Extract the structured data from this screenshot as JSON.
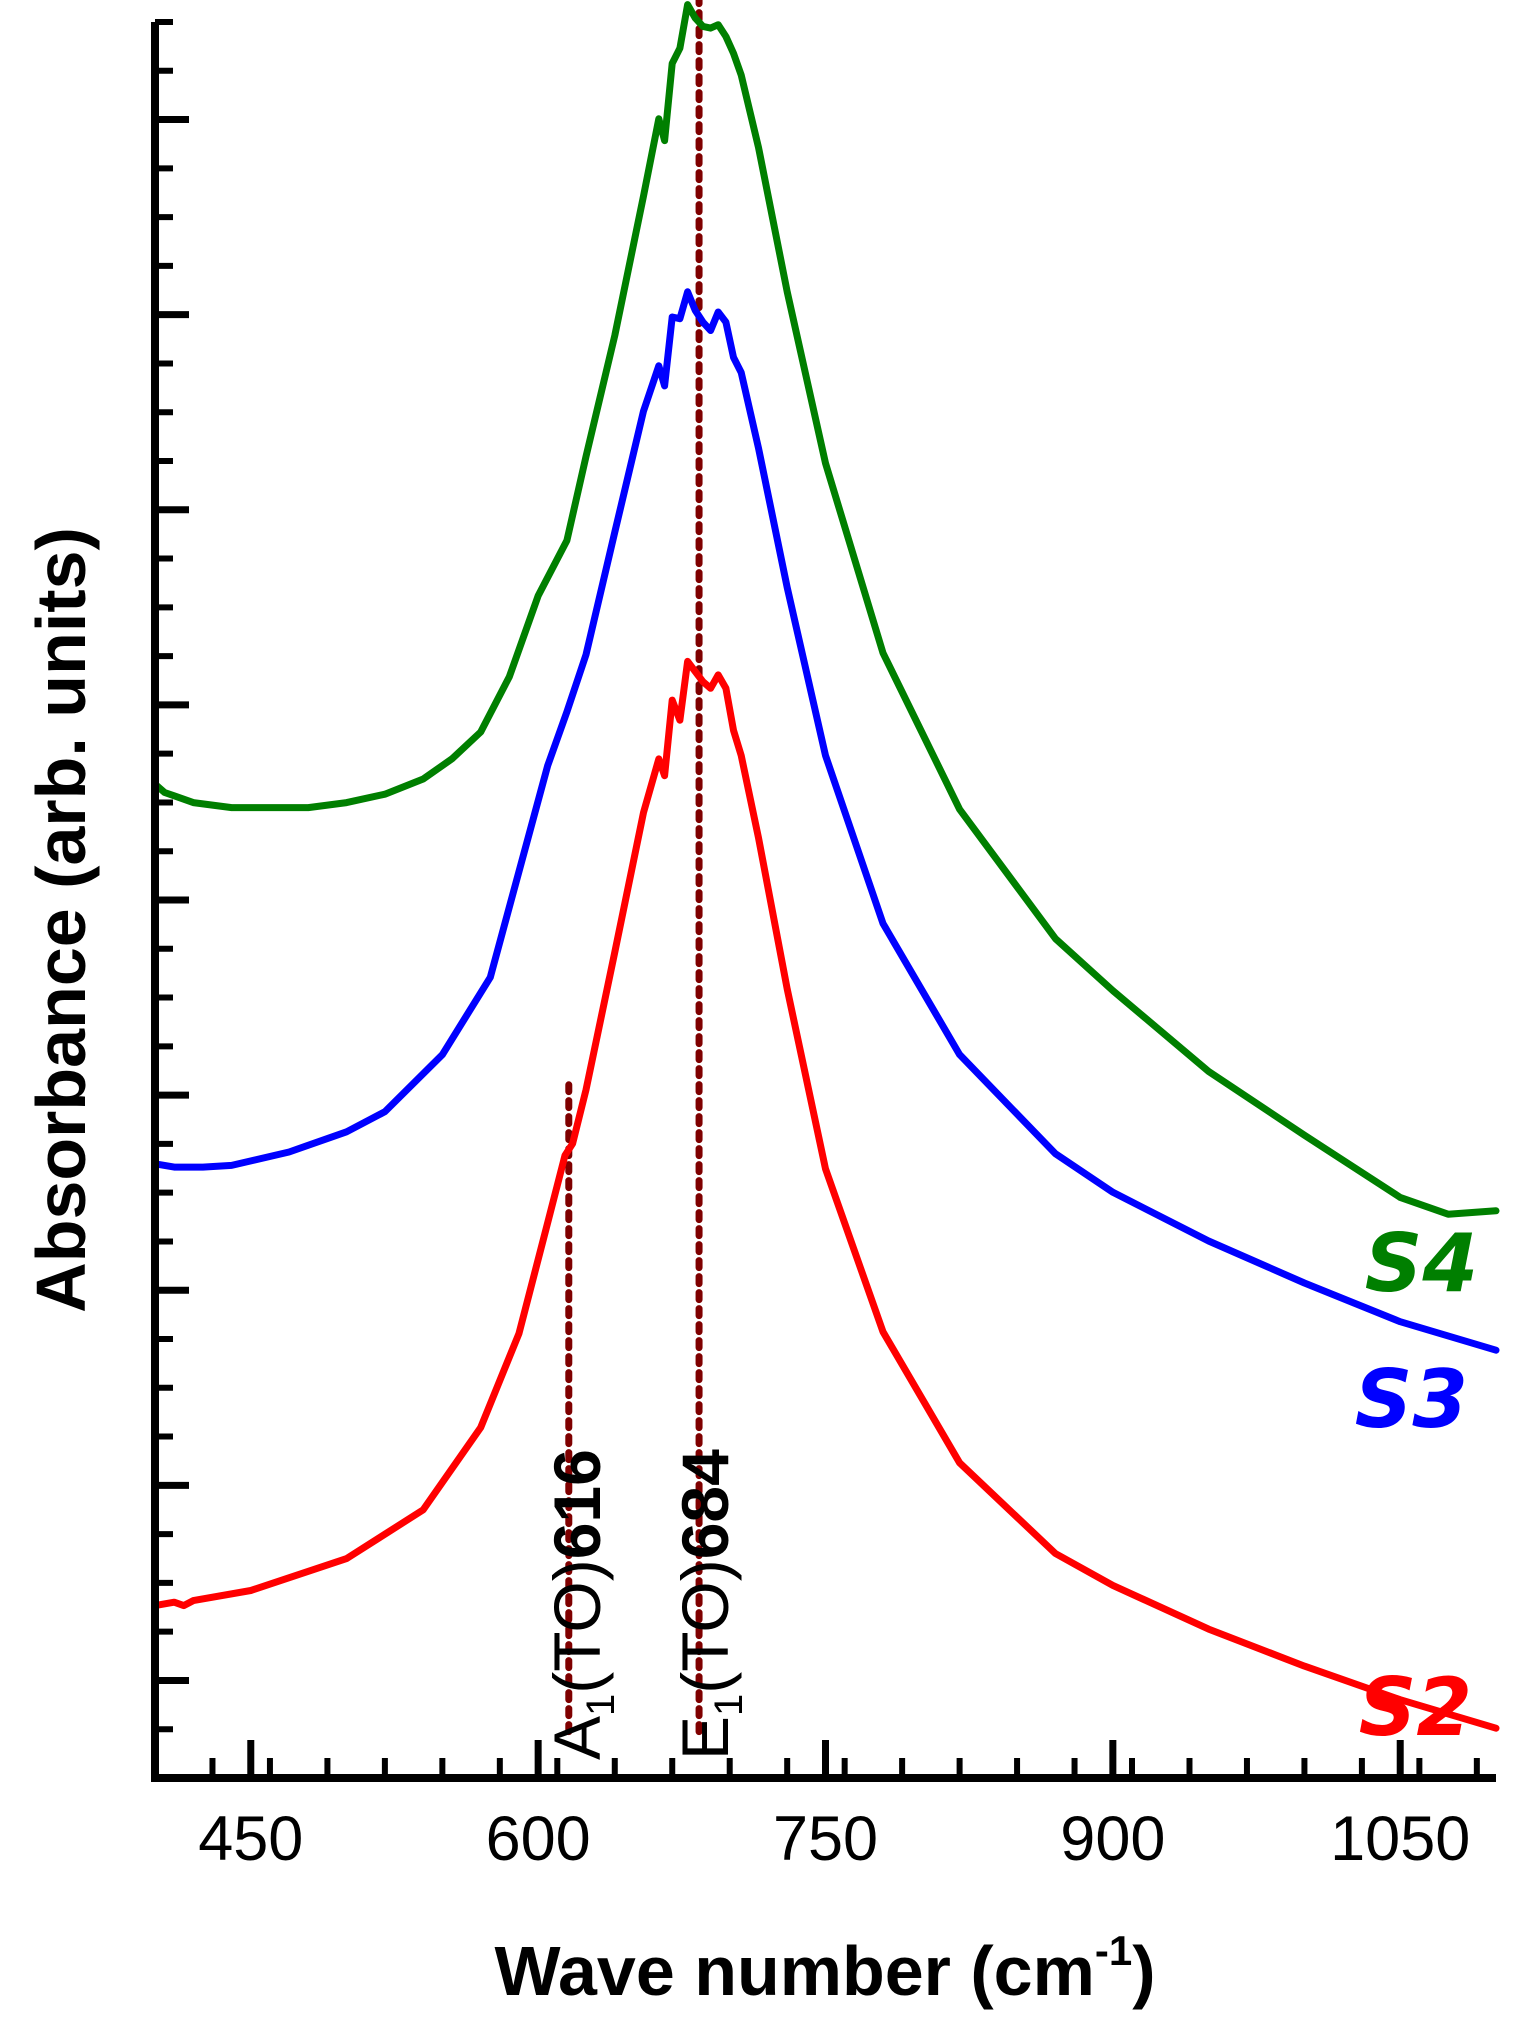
{
  "chart_data": {
    "type": "line",
    "title": "",
    "xlabel": "Wave number (cm",
    "xlabel_sup": "-1",
    "xlabel_end": ")",
    "ylabel": "Absorbance (arb. units)",
    "xlim": [
      400,
      1100
    ],
    "ylim": [
      0,
      100
    ],
    "x_ticks": [
      450,
      600,
      750,
      900,
      1050
    ],
    "grid": false,
    "colors": {
      "S2": "#ff0000",
      "S3": "#0000ff",
      "S4": "#007f00",
      "marker": "#7f0000"
    },
    "series": [
      {
        "name": "S2",
        "x": [
          400,
          410,
          415,
          420,
          450,
          500,
          540,
          570,
          590,
          605,
          614,
          618,
          625,
          640,
          655,
          663,
          666,
          670,
          674,
          678,
          682,
          686,
          690,
          694,
          698,
          702,
          706,
          715,
          730,
          750,
          780,
          820,
          870,
          900,
          950,
          1000,
          1050,
          1100
        ],
        "y": [
          8.0,
          8.2,
          8.0,
          8.3,
          8.9,
          10.8,
          13.7,
          18.6,
          24.2,
          30.8,
          34.8,
          35.5,
          38.7,
          46.9,
          55.2,
          58.4,
          57.4,
          61.9,
          60.7,
          64.2,
          63.6,
          63.0,
          62.6,
          63.4,
          62.6,
          60.1,
          58.6,
          53.7,
          44.7,
          34.0,
          24.3,
          16.5,
          11.1,
          9.2,
          6.6,
          4.4,
          2.4,
          0.7
        ]
      },
      {
        "name": "S3",
        "x": [
          400,
          410,
          425,
          440,
          470,
          500,
          520,
          550,
          575,
          590,
          605,
          615,
          625,
          640,
          655,
          663,
          666,
          670,
          674,
          678,
          682,
          686,
          690,
          694,
          698,
          702,
          706,
          715,
          730,
          750,
          780,
          820,
          870,
          900,
          950,
          1000,
          1050,
          1100
        ],
        "y": [
          34.3,
          34.1,
          34.1,
          34.2,
          35.0,
          36.2,
          37.4,
          40.8,
          45.4,
          51.7,
          58.0,
          61.2,
          64.6,
          71.9,
          79.1,
          81.8,
          80.6,
          84.7,
          84.6,
          86.2,
          85.1,
          84.4,
          83.9,
          85.0,
          84.4,
          82.3,
          81.4,
          76.9,
          68.6,
          58.6,
          48.6,
          40.8,
          34.9,
          32.6,
          29.7,
          27.2,
          24.9,
          23.2
        ]
      },
      {
        "name": "S4",
        "x": [
          400,
          405,
          410,
          420,
          440,
          460,
          480,
          500,
          520,
          540,
          555,
          570,
          585,
          600,
          615,
          625,
          640,
          655,
          663,
          666,
          670,
          674,
          678,
          682,
          686,
          690,
          694,
          698,
          702,
          706,
          715,
          730,
          750,
          780,
          820,
          870,
          900,
          950,
          1000,
          1050,
          1075,
          1100
        ],
        "y": [
          56.9,
          56.4,
          56.2,
          55.8,
          55.5,
          55.5,
          55.5,
          55.8,
          56.3,
          57.2,
          58.4,
          60.0,
          63.3,
          68.1,
          71.4,
          76.4,
          83.6,
          91.9,
          96.5,
          95.2,
          99.8,
          100.7,
          103.3,
          102.5,
          102.0,
          101.9,
          102.1,
          101.4,
          100.4,
          99.1,
          94.8,
          86.2,
          76.0,
          64.7,
          55.4,
          47.7,
          44.6,
          39.8,
          36.0,
          32.3,
          31.3,
          31.5
        ]
      }
    ],
    "series_labels": [
      "S4",
      "S3",
      "S2"
    ],
    "annotations": [
      {
        "label_pre": "A",
        "label_sub": "1",
        "label_mid": "(TO)",
        "label_bold": "616",
        "x": 616,
        "y_from": 0.5,
        "y_to": 39.0
      },
      {
        "label_pre": "E",
        "label_sub": "1",
        "label_mid": "(TO)",
        "label_bold": "684",
        "x": 684,
        "y_from": 0.5,
        "y_to": 105.5
      }
    ]
  }
}
